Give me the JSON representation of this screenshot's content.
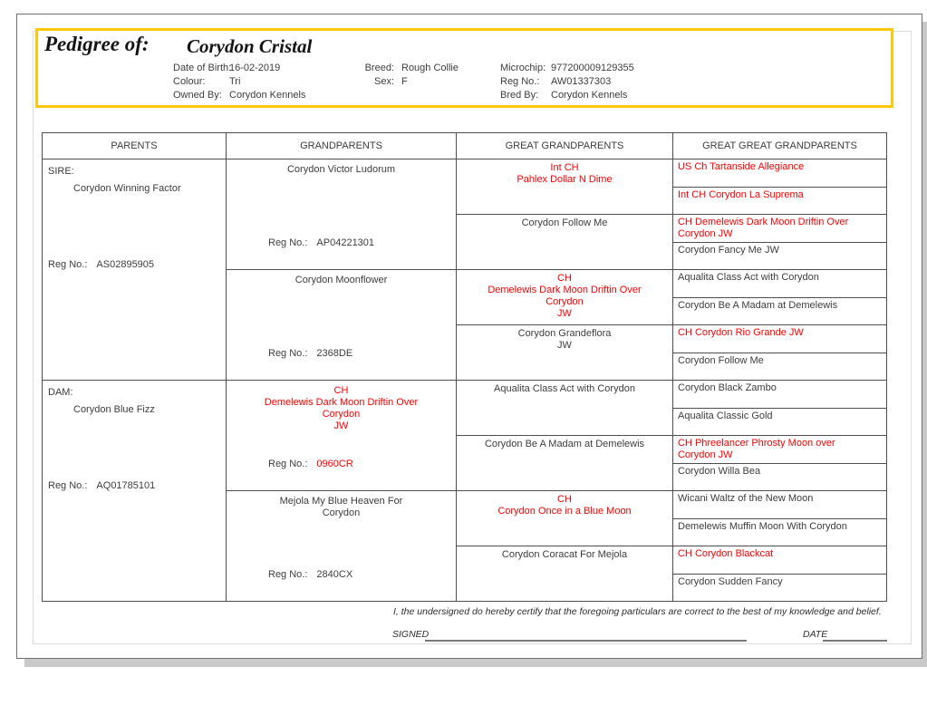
{
  "header": {
    "title_label": "Pedigree of:",
    "dog_name": "Corydon Cristal",
    "details": {
      "dob_label": "Date of Birth:",
      "dob": "16-02-2019",
      "breed_label": "Breed:",
      "breed": "Rough Collie",
      "microchip_label": "Microchip:",
      "microchip": "977200009129355",
      "colour_label": "Colour:",
      "colour": "Tri",
      "sex_label": "Sex:",
      "sex": "F",
      "regno_label": "Reg No.:",
      "regno": "AW01337303",
      "owned_label": "Owned By:",
      "owned": "Corydon Kennels",
      "bred_label": "Bred By:",
      "bred": "Corydon Kennels"
    }
  },
  "table": {
    "headers": [
      "PARENTS",
      "GRANDPARENTS",
      "GREAT GRANDPARENTS",
      "GREAT GREAT GRANDPARENTS"
    ],
    "reg_label": "Reg No.:",
    "parents": [
      {
        "role": "SIRE:",
        "name": "Corydon Winning Factor",
        "reg": "AS02895905"
      },
      {
        "role": "DAM:",
        "name": "Corydon Blue Fizz",
        "reg": "AQ01785101"
      }
    ],
    "grandparents": [
      {
        "lines": [
          "Corydon Victor Ludorum"
        ],
        "red": false,
        "reg": "AP04221301",
        "reg_red": false
      },
      {
        "lines": [
          "Corydon Moonflower"
        ],
        "red": false,
        "reg": "2368DE",
        "reg_red": false
      },
      {
        "lines": [
          "CH",
          "Demelewis Dark Moon Driftin Over",
          "Corydon",
          "JW"
        ],
        "red": true,
        "reg": "0960CR",
        "reg_red": true
      },
      {
        "lines": [
          "Mejola My Blue Heaven For",
          "Corydon"
        ],
        "red": false,
        "reg": "2840CX",
        "reg_red": false
      }
    ],
    "great_grandparents": [
      {
        "lines": [
          "Int CH",
          "Pahlex Dollar N Dime"
        ],
        "red": true
      },
      {
        "lines": [
          "Corydon Follow Me"
        ],
        "red": false
      },
      {
        "lines": [
          "CH",
          "Demelewis Dark Moon Driftin Over",
          "Corydon",
          "JW"
        ],
        "red": true
      },
      {
        "lines": [
          "Corydon Grandeflora",
          "JW"
        ],
        "red": false
      },
      {
        "lines": [
          "Aqualita Class Act with Corydon"
        ],
        "red": false
      },
      {
        "lines": [
          "Corydon Be A Madam at Demelewis"
        ],
        "red": false
      },
      {
        "lines": [
          "CH",
          "Corydon Once in a Blue Moon"
        ],
        "red": true
      },
      {
        "lines": [
          "Corydon Coracat For Mejola"
        ],
        "red": false
      }
    ],
    "great_great_grandparents": [
      {
        "lines": [
          "US Ch Tartanside Allegiance"
        ],
        "red": true
      },
      {
        "lines": [
          "Int CH Corydon La Suprema"
        ],
        "red": true
      },
      {
        "lines": [
          "CH Demelewis Dark Moon Driftin Over",
          "Corydon JW"
        ],
        "red": true
      },
      {
        "lines": [
          "Corydon Fancy Me JW"
        ],
        "red": false
      },
      {
        "lines": [
          "Aqualita Class Act with Corydon"
        ],
        "red": false
      },
      {
        "lines": [
          "Corydon Be A Madam at Demelewis"
        ],
        "red": false
      },
      {
        "lines": [
          "CH Corydon Rio Grande JW"
        ],
        "red": true
      },
      {
        "lines": [
          "Corydon Follow Me"
        ],
        "red": false
      },
      {
        "lines": [
          "Corydon Black Zambo"
        ],
        "red": false
      },
      {
        "lines": [
          "Aqualita Classic Gold"
        ],
        "red": false
      },
      {
        "lines": [
          "CH Phreelancer Phrosty Moon over",
          "Corydon JW"
        ],
        "red": true
      },
      {
        "lines": [
          "Corydon Willa Bea"
        ],
        "red": false
      },
      {
        "lines": [
          "Wicani Waltz of the New Moon"
        ],
        "red": false
      },
      {
        "lines": [
          "Demelewis Muffin Moon With Corydon"
        ],
        "red": false
      },
      {
        "lines": [
          "CH Corydon Blackcat"
        ],
        "red": true
      },
      {
        "lines": [
          "Corydon Sudden Fancy"
        ],
        "red": false
      }
    ]
  },
  "footer": {
    "certification": "I, the undersigned do hereby certify that the foregoing particulars are correct to the best of my knowledge and belief.",
    "signed_label": "SIGNED",
    "date_label": "DATE"
  },
  "colors": {
    "champion_red": "#ff0000",
    "header_border_yellow": "#ffc80a",
    "table_border": "#4e4e4e",
    "text": "#3d3d3d"
  }
}
